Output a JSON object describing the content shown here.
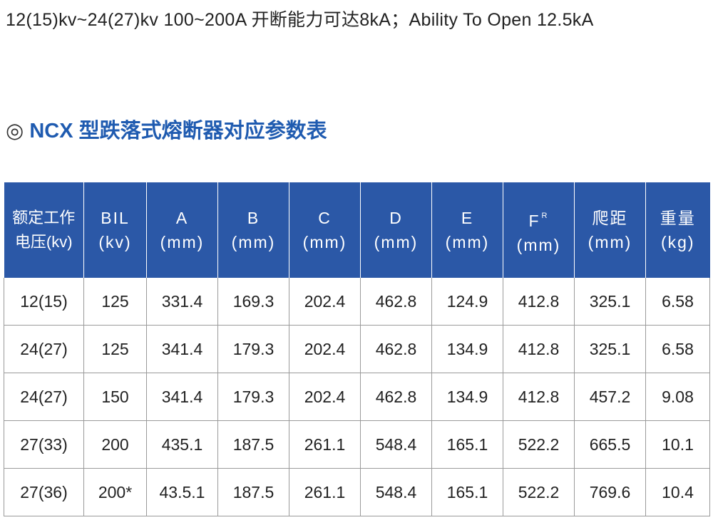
{
  "header": {
    "text": "12(15)kv~24(27)kv 100~200A 开断能力可达8kA；Ability To Open 12.5kA"
  },
  "section": {
    "marker": "◎",
    "title": "NCX 型跌落式熔断器对应参数表"
  },
  "table": {
    "headers": [
      {
        "lines": [
          "额定工作",
          "电压(kv)"
        ]
      },
      {
        "lines": [
          "BIL",
          "(kv)"
        ]
      },
      {
        "lines": [
          "A",
          "(mm)"
        ]
      },
      {
        "lines": [
          "B",
          "(mm)"
        ]
      },
      {
        "lines": [
          "C",
          "(mm)"
        ]
      },
      {
        "lines": [
          "D",
          "(mm)"
        ]
      },
      {
        "lines": [
          "E",
          "(mm)"
        ]
      },
      {
        "lines": [
          "F",
          "(mm)"
        ],
        "sup": "R"
      },
      {
        "lines": [
          "爬距",
          "(mm)"
        ]
      },
      {
        "lines": [
          "重量",
          "(kg)"
        ]
      }
    ],
    "rows": [
      [
        "12(15)",
        "125",
        "331.4",
        "169.3",
        "202.4",
        "462.8",
        "124.9",
        "412.8",
        "325.1",
        "6.58"
      ],
      [
        "24(27)",
        "125",
        "341.4",
        "179.3",
        "202.4",
        "462.8",
        "134.9",
        "412.8",
        "325.1",
        "6.58"
      ],
      [
        "24(27)",
        "150",
        "341.4",
        "179.3",
        "202.4",
        "462.8",
        "134.9",
        "412.8",
        "457.2",
        "9.08"
      ],
      [
        "27(33)",
        "200",
        "435.1",
        "187.5",
        "261.1",
        "548.4",
        "165.1",
        "522.2",
        "665.5",
        "10.1"
      ],
      [
        "27(36)",
        "200*",
        "43.5.1",
        "187.5",
        "261.1",
        "548.4",
        "165.1",
        "522.2",
        "769.6",
        "10.4"
      ]
    ]
  }
}
